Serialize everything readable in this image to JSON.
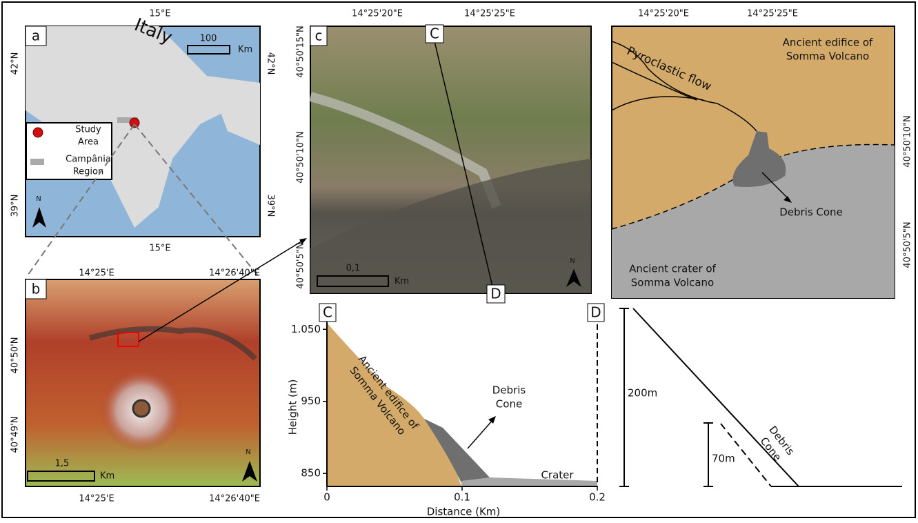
{
  "panel_a": {
    "label": "a",
    "country": "Italy",
    "scale_value": "100",
    "scale_unit": "Km",
    "top_tick": "15°E",
    "bottom_tick": "15°E",
    "left_ticks": [
      "42°N",
      "39°N"
    ],
    "right_ticks": [
      "42°N",
      "39°N"
    ],
    "legend": [
      [
        "Study",
        "Area"
      ],
      [
        "Campânia",
        "Region"
      ]
    ],
    "north": "N"
  },
  "panel_b": {
    "label": "b",
    "top_ticks": [
      "14°25'E",
      "14°26'40\"E"
    ],
    "bottom_ticks": [
      "14°25'E",
      "14°26'40\"E"
    ],
    "left_ticks": [
      "40°50'N",
      "40°49'N"
    ],
    "scale_value": "1,5",
    "scale_unit": "Km",
    "north": "N"
  },
  "panel_c": {
    "label": "c",
    "top_ticks": [
      "14°25'20\"E",
      "14°25'25\"E"
    ],
    "left_ticks": [
      "40°50'15\"N",
      "40°50'10\"N",
      "40°50'5\"N"
    ],
    "section_start": "C",
    "section_end": "D",
    "scale_value": "0,1",
    "scale_unit": "Km",
    "north": "N"
  },
  "panel_d": {
    "top_ticks": [
      "14°25'20\"E",
      "14°25'25\"E"
    ],
    "right_ticks": [
      "40°50'10\"N",
      "40°50'5\"N"
    ],
    "edifice": [
      "Ancient edifice of",
      "Somma Volcano"
    ],
    "flow": "Pyroclastic flow",
    "cone": "Debris Cone",
    "crater": [
      "Ancient crater of",
      "Somma Volcano"
    ]
  },
  "profile": {
    "start": "C",
    "end": "D",
    "ylabel": "Height (m)",
    "xlabel": "Distance (Km)",
    "xlim": [
      0,
      0.2
    ],
    "ylim": [
      832,
      1078
    ],
    "xticks": [
      0,
      0.1,
      0.2
    ],
    "yticks": [
      {
        "value": 1050,
        "label": "1.050"
      },
      950,
      850
    ],
    "edifice": [
      "Ancient edifice of",
      "Somma Volcano"
    ],
    "cone": [
      "Debris",
      "Cone"
    ],
    "crater": "Crater"
  },
  "schematic": {
    "total_height": "200m",
    "cone_height": "70m",
    "cone": [
      "Debris",
      "Cone"
    ]
  }
}
